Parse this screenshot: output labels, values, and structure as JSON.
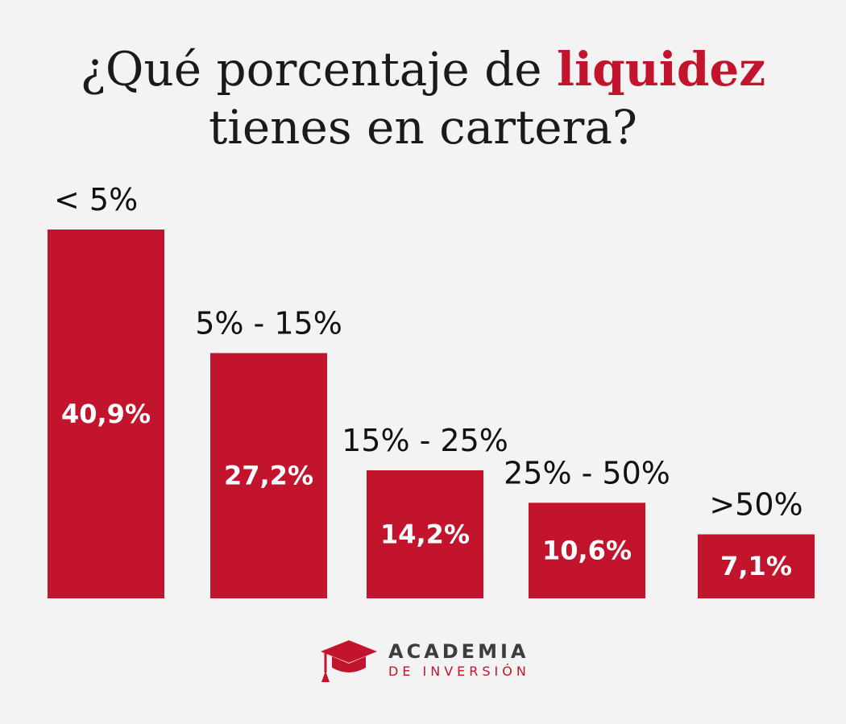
{
  "title": {
    "part1": "¿Qué porcentaje de ",
    "highlight": "liquidez",
    "part2": "tienes en cartera?"
  },
  "colors": {
    "bar": "#c3142d",
    "background": "#f3f3f3",
    "text": "#111111"
  },
  "chart_data": {
    "type": "bar",
    "categories": [
      "< 5%",
      "5% - 15%",
      "15% - 25%",
      "25% - 50%",
      ">50%"
    ],
    "values": [
      40.9,
      27.2,
      14.2,
      10.6,
      7.1
    ],
    "value_labels": [
      "40,9%",
      "27,2%",
      "14,2%",
      "10,6%",
      "7,1%"
    ],
    "title": "¿Qué porcentaje de liquidez tienes en cartera?",
    "xlabel": "",
    "ylabel": "",
    "ylim": [
      0,
      40.9
    ],
    "grid": false,
    "legend": "none"
  },
  "logo": {
    "name": "ACADEMIA",
    "subtitle": "DE INVERSIÓN",
    "icon": "graduation-cap-icon"
  }
}
